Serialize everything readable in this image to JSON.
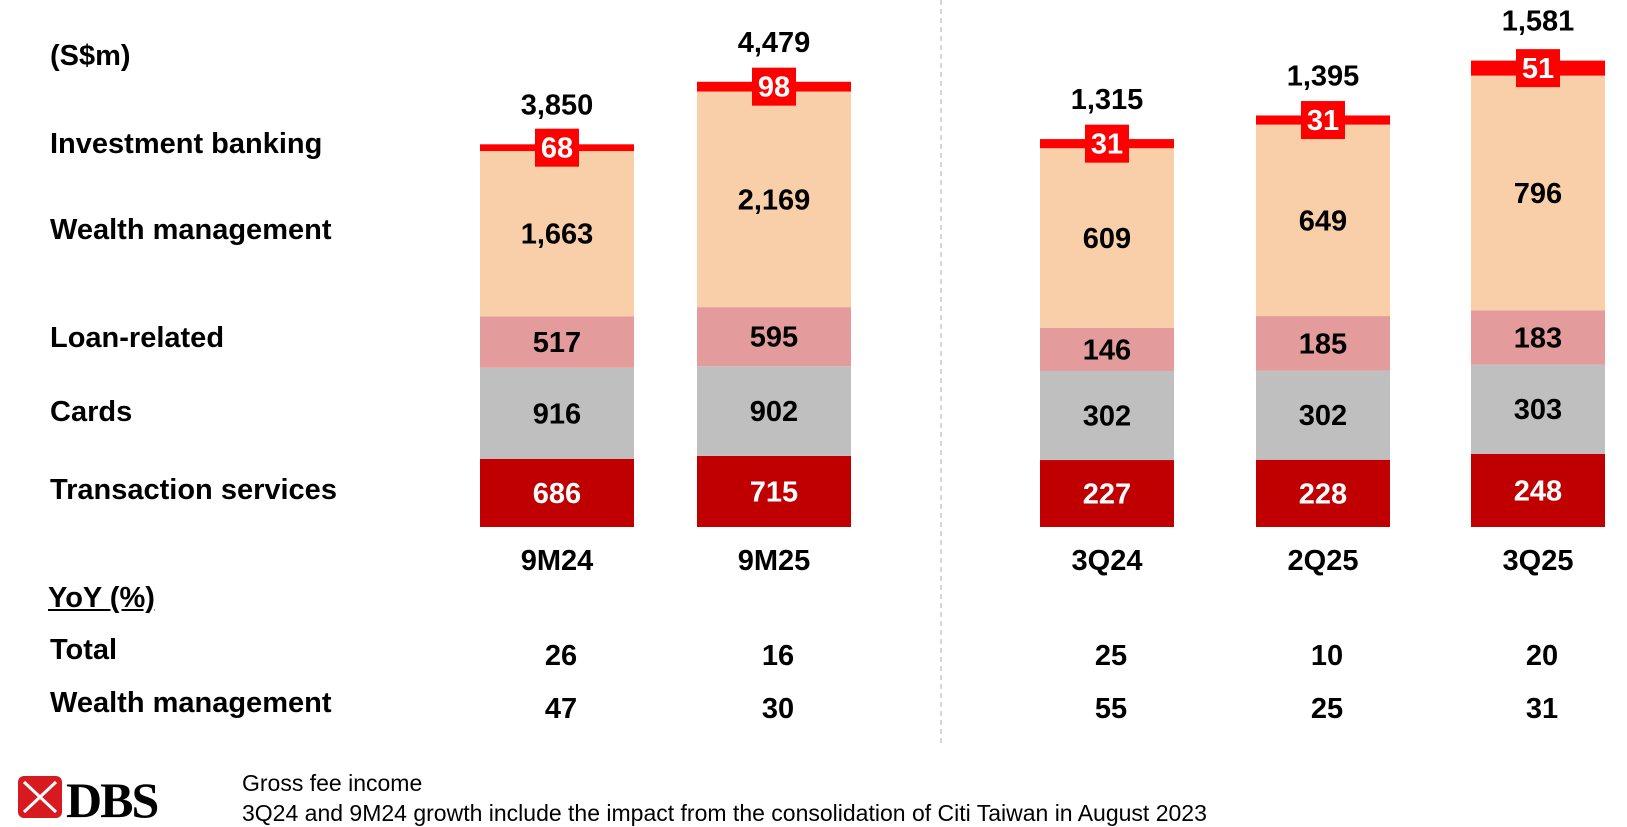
{
  "chart_data": {
    "type": "bar",
    "stacked": true,
    "unit_label": "(S$m)",
    "categories": [
      "9M24",
      "9M25",
      "3Q24",
      "2Q25",
      "3Q25"
    ],
    "panels": [
      {
        "categories": [
          "9M24",
          "9M25"
        ]
      },
      {
        "categories": [
          "3Q24",
          "2Q25",
          "3Q25"
        ]
      }
    ],
    "series": [
      {
        "name": "Transaction services",
        "color": "#c00000",
        "values": [
          686,
          715,
          227,
          228,
          248
        ]
      },
      {
        "name": "Cards",
        "color": "#bfbfbf",
        "values": [
          916,
          902,
          302,
          302,
          303
        ]
      },
      {
        "name": "Loan-related",
        "color": "#e39b9c",
        "values": [
          517,
          595,
          146,
          185,
          183
        ]
      },
      {
        "name": "Wealth management",
        "color": "#f8cfa8",
        "values": [
          1663,
          2169,
          609,
          649,
          796
        ]
      },
      {
        "name": "Investment banking",
        "color": "#ff0000",
        "values": [
          68,
          98,
          31,
          31,
          51
        ]
      }
    ],
    "totals": [
      3850,
      4479,
      1315,
      1395,
      1581
    ],
    "total_labels": [
      "3,850",
      "4,479",
      "1,315",
      "1,395",
      "1,581"
    ],
    "value_labels": [
      [
        "686",
        "715",
        "227",
        "228",
        "248"
      ],
      [
        "916",
        "902",
        "302",
        "302",
        "303"
      ],
      [
        "517",
        "595",
        "146",
        "185",
        "183"
      ],
      [
        "1,663",
        "2,169",
        "609",
        "649",
        "796"
      ],
      [
        "68",
        "98",
        "31",
        "31",
        "51"
      ]
    ],
    "grid": false,
    "legend": "left"
  },
  "yoy": {
    "title": "YoY (%)",
    "rows": [
      {
        "label": "Total",
        "values": [
          "26",
          "16",
          "25",
          "10",
          "20"
        ]
      },
      {
        "label": "Wealth management",
        "values": [
          "47",
          "30",
          "55",
          "25",
          "31"
        ]
      }
    ]
  },
  "footer": {
    "logo_text": "DBS",
    "note1": "Gross fee income",
    "note2": "3Q24 and 9M24 growth include the impact from the consolidation of Citi Taiwan in August 2023"
  }
}
